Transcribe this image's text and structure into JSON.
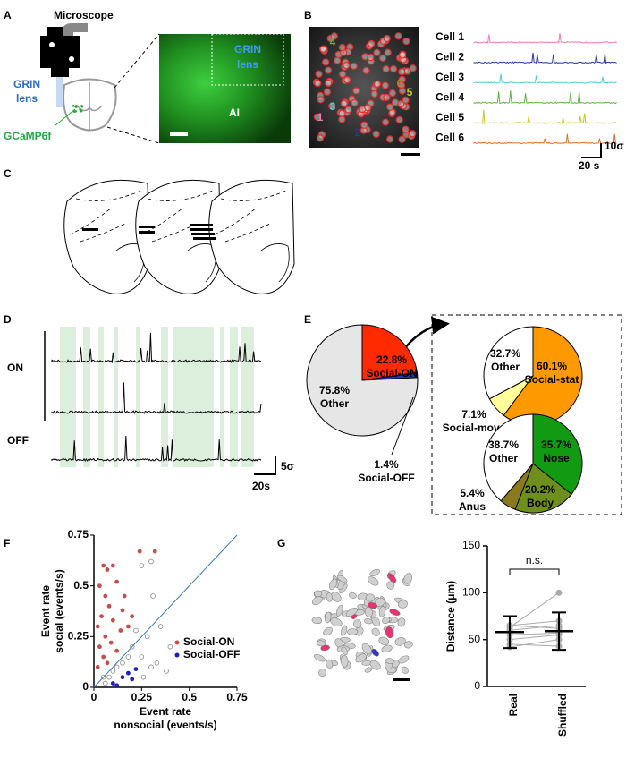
{
  "figure": {
    "panel_labels": [
      "A",
      "B",
      "C",
      "D",
      "E",
      "F",
      "G"
    ],
    "A": {
      "microscope": "Microscope",
      "grin_lens": [
        "GRIN",
        "lens"
      ],
      "gcamp": "GCaMP6f",
      "image_grin_lens": [
        "GRIN",
        "lens"
      ],
      "region": "AI"
    },
    "B": {
      "cell_ids": [
        "1",
        "2",
        "3",
        "4",
        "5",
        "6"
      ],
      "trace_labels": [
        "Cell 1",
        "Cell 2",
        "Cell 3",
        "Cell 4",
        "Cell 5",
        "Cell 6"
      ],
      "scale_y": "10σ",
      "scale_x": "20 s"
    },
    "D": {
      "on": "ON",
      "off": "OFF",
      "scale_y": "5σ",
      "scale_x": "20s"
    }
  },
  "chart_data": [
    {
      "type": "pie",
      "categories": [
        "Social-ON",
        "Social-OFF",
        "Other"
      ],
      "values": [
        22.8,
        1.4,
        75.8
      ],
      "value_labels": [
        "22.8%",
        "1.4%",
        "75.8%"
      ],
      "colors": [
        "#ff2a00",
        "#2233cc",
        "#e6e6e6"
      ]
    },
    {
      "type": "pie",
      "categories": [
        "Social-stat",
        "Social-move",
        "Other"
      ],
      "values": [
        60.1,
        7.1,
        32.7
      ],
      "value_labels": [
        "60.1%",
        "7.1%",
        "32.7%"
      ],
      "colors": [
        "#ff9900",
        "#ffff99",
        "#ffffff"
      ]
    },
    {
      "type": "pie",
      "categories": [
        "Nose",
        "Body",
        "Anus",
        "Other"
      ],
      "values": [
        35.7,
        20.2,
        5.4,
        38.7
      ],
      "value_labels": [
        "35.7%",
        "20.2%",
        "5.4%",
        "38.7%"
      ],
      "colors": [
        "#139a13",
        "#6e8f1c",
        "#8a7a1e",
        "#ffffff"
      ]
    },
    {
      "type": "scatter",
      "xlabel": [
        "Event rate",
        "nonsocial (events/s)"
      ],
      "ylabel": [
        "Event rate",
        "social (events/s)"
      ],
      "xlim": [
        0,
        0.75
      ],
      "ylim": [
        0,
        0.75
      ],
      "xticks": [
        0,
        0.25,
        0.5,
        0.75
      ],
      "yticks": [
        0,
        0.25,
        0.5,
        0.75
      ],
      "legend": "lower right",
      "series": [
        {
          "color": "#888888",
          "x": [
            0.25,
            0.3,
            0.31,
            0.35,
            0.28,
            0.4,
            0.38,
            0.2,
            0.15,
            0.25,
            0.1,
            0.05,
            0.3,
            0.22,
            0.18,
            0.06,
            0.12,
            0.26,
            0.33,
            0.08
          ],
          "y": [
            0.6,
            0.62,
            0.45,
            0.3,
            0.25,
            0.2,
            0.08,
            0.2,
            0.12,
            0.15,
            0.08,
            0.05,
            0.1,
            0.28,
            0.15,
            0.02,
            0.1,
            0.05,
            0.12,
            0.05
          ]
        },
        {
          "name": "Social-ON",
          "color": "#c0504d",
          "x": [
            0.05,
            0.07,
            0.1,
            0.24,
            0.32,
            0.03,
            0.06,
            0.12,
            0.08,
            0.15,
            0.04,
            0.1,
            0.02,
            0.14,
            0.06,
            0.18,
            0.09,
            0.03,
            0.12,
            0.05,
            0.02,
            0.07,
            0.2,
            0.16
          ],
          "y": [
            0.6,
            0.58,
            0.6,
            0.67,
            0.67,
            0.5,
            0.45,
            0.52,
            0.4,
            0.38,
            0.35,
            0.33,
            0.3,
            0.28,
            0.25,
            0.3,
            0.22,
            0.2,
            0.18,
            0.15,
            0.1,
            0.12,
            0.35,
            0.45
          ]
        },
        {
          "name": "Social-OFF",
          "color": "#1f1fbf",
          "x": [
            0.15,
            0.18,
            0.2,
            0.1,
            0.22,
            0.12
          ],
          "y": [
            0.05,
            0.07,
            0.04,
            0.02,
            0.09,
            0.01
          ]
        }
      ]
    },
    {
      "type": "dot",
      "ylabel": "Distance (μm)",
      "categories": [
        "Real",
        "Shuffled"
      ],
      "ylim": [
        0,
        150
      ],
      "yticks": [
        0,
        50,
        100,
        150
      ],
      "annotation": "n.s.",
      "series": [
        {
          "color": "#aaaaaa",
          "values": [
            63,
            100
          ]
        },
        {
          "color": "#aaaaaa",
          "values": [
            65,
            70
          ]
        },
        {
          "color": "#aaaaaa",
          "values": [
            60,
            65
          ]
        },
        {
          "color": "#aaaaaa",
          "values": [
            55,
            57
          ]
        },
        {
          "color": "#aaaaaa",
          "values": [
            50,
            55
          ]
        },
        {
          "color": "#aaaaaa",
          "values": [
            45,
            43
          ]
        },
        {
          "color": "#aaaaaa",
          "values": [
            42,
            50
          ]
        },
        {
          "color": "#aaaaaa",
          "values": [
            65,
            62
          ]
        }
      ],
      "mean": [
        58,
        59
      ],
      "error": [
        17,
        20
      ]
    }
  ]
}
